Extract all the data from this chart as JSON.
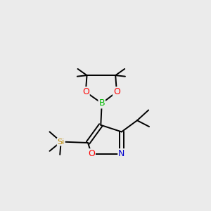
{
  "bg_color": "#ebebeb",
  "atom_colors": {
    "C": "#000000",
    "O": "#ff0000",
    "N": "#0000cc",
    "B": "#00bb00",
    "Si": "#bb8800"
  },
  "bond_color": "#000000",
  "bond_width": 1.4,
  "font_size_atom": 9,
  "font_size_si": 8
}
